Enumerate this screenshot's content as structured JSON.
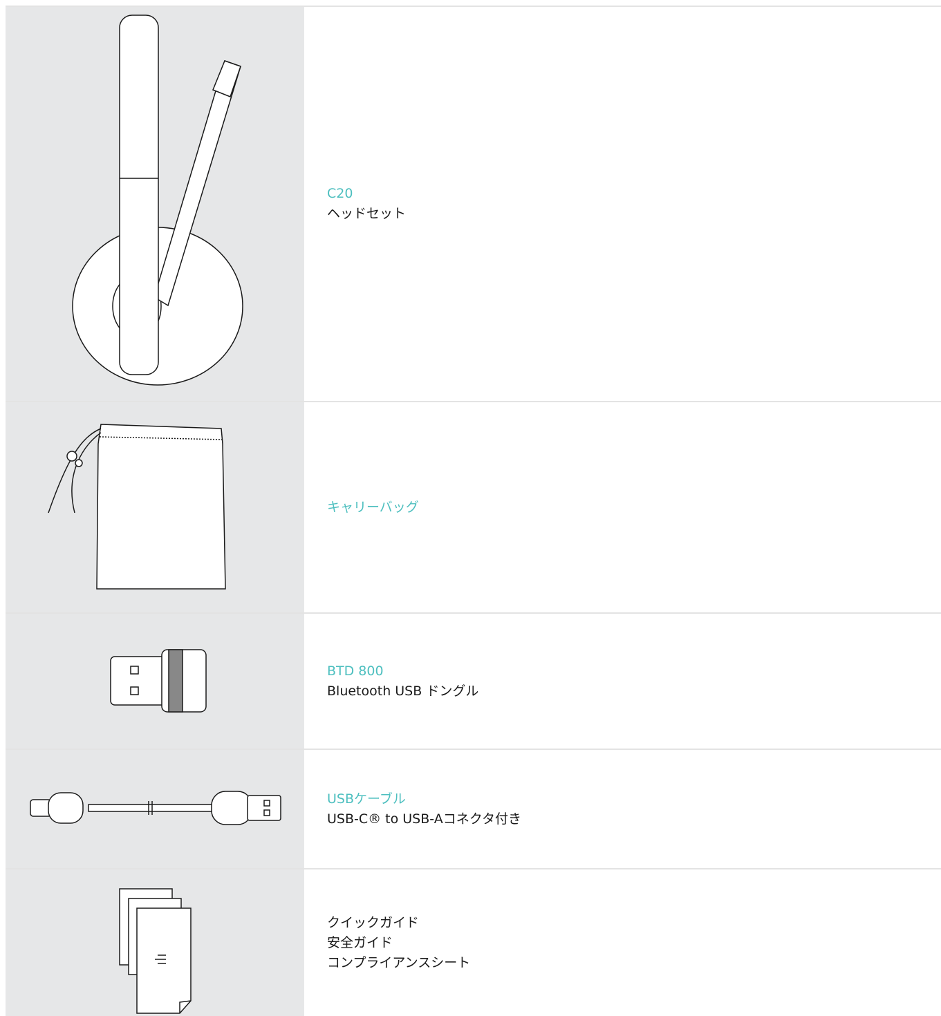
{
  "items": [
    {
      "title": "C20",
      "lines": [
        "ヘッドセット"
      ]
    },
    {
      "title": "キャリーバッグ",
      "lines": []
    },
    {
      "title": "BTD 800",
      "lines": [
        "Bluetooth USB ドングル"
      ]
    },
    {
      "title": "USBケーブル",
      "lines": [
        "USB-C® to USB-Aコネクタ付き"
      ]
    },
    {
      "title": null,
      "lines": [
        "クイックガイド",
        "安全ガイド",
        "コンプライアンスシート"
      ]
    }
  ]
}
